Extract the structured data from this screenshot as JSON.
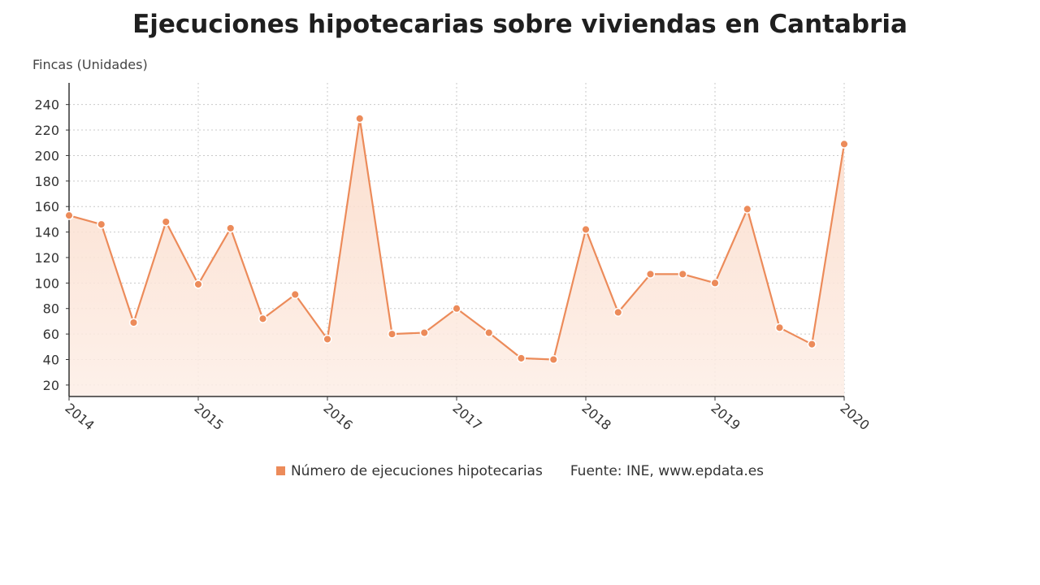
{
  "chart_data": {
    "type": "area",
    "title": "Ejecuciones hipotecarias sobre viviendas en Cantabria",
    "ylabel": "Fincas (Unidades)",
    "xlabel": "",
    "x_ticks": [
      "2014",
      "2015",
      "2016",
      "2017",
      "2018",
      "2019",
      "2020"
    ],
    "y_ticks": [
      20,
      40,
      60,
      80,
      100,
      120,
      140,
      160,
      180,
      200,
      220,
      240
    ],
    "ylim": [
      11,
      257
    ],
    "xlim": [
      2014,
      2020
    ],
    "grid": true,
    "legend_position": "bottom",
    "series": [
      {
        "name": "Número de ejecuciones hipotecarias",
        "color": "#ec8b5a",
        "x": [
          2014.0,
          2014.25,
          2014.5,
          2014.75,
          2015.0,
          2015.25,
          2015.5,
          2015.75,
          2016.0,
          2016.25,
          2016.5,
          2016.75,
          2017.0,
          2017.25,
          2017.5,
          2017.75,
          2018.0,
          2018.25,
          2018.5,
          2018.75,
          2019.0,
          2019.25,
          2019.5,
          2019.75,
          2020.0
        ],
        "values": [
          153,
          146,
          69,
          148,
          99,
          143,
          72,
          91,
          56,
          229,
          60,
          61,
          80,
          61,
          41,
          40,
          142,
          77,
          107,
          107,
          100,
          158,
          65,
          52,
          209
        ]
      }
    ]
  },
  "source_text": "Fuente: INE, www.epdata.es"
}
